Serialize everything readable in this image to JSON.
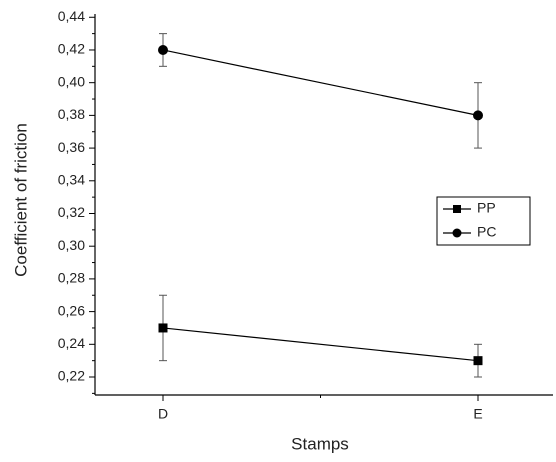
{
  "chart_data": {
    "type": "line",
    "y_label": "Coefficient of friction",
    "x_label": "Stamps",
    "categories": [
      "D",
      "E"
    ],
    "series": [
      {
        "name": "PP",
        "color": "#000000",
        "marker": "square",
        "values": [
          0.25,
          0.23
        ],
        "errors": [
          0.02,
          0.01
        ]
      },
      {
        "name": "PC",
        "color": "#000000",
        "marker": "circle",
        "values": [
          0.42,
          0.38
        ],
        "errors": [
          0.01,
          0.02
        ]
      }
    ],
    "ylim": [
      0.209,
      0.442
    ],
    "yticks": [
      {
        "value": 0.22,
        "label": "0,22"
      },
      {
        "value": 0.24,
        "label": "0,24"
      },
      {
        "value": 0.26,
        "label": "0,26"
      },
      {
        "value": 0.28,
        "label": "0,28"
      },
      {
        "value": 0.3,
        "label": "0,30"
      },
      {
        "value": 0.32,
        "label": "0,32"
      },
      {
        "value": 0.34,
        "label": "0,34"
      },
      {
        "value": 0.36,
        "label": "0,36"
      },
      {
        "value": 0.38,
        "label": "0,38"
      },
      {
        "value": 0.4,
        "label": "0,40"
      },
      {
        "value": 0.42,
        "label": "0,42"
      },
      {
        "value": 0.44,
        "label": "0,44"
      }
    ],
    "legend": "right"
  }
}
